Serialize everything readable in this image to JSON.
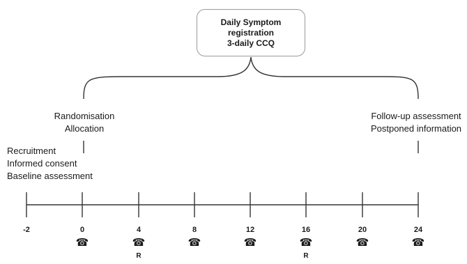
{
  "box": {
    "lines": [
      "Daily Symptom",
      "registration",
      "3-daily CCQ"
    ]
  },
  "labels": {
    "randomisation": [
      "Randomisation",
      "Allocation"
    ],
    "followup": [
      "Follow-up assessment",
      "Postponed information"
    ],
    "recruitment": [
      "Recruitment",
      "Informed consent",
      "Baseline assessment"
    ]
  },
  "timeline": {
    "ticks": [
      {
        "week": "-2",
        "phone": false,
        "mark": ""
      },
      {
        "week": "0",
        "phone": true,
        "mark": ""
      },
      {
        "week": "4",
        "phone": true,
        "mark": "R"
      },
      {
        "week": "8",
        "phone": true,
        "mark": ""
      },
      {
        "week": "12",
        "phone": true,
        "mark": ""
      },
      {
        "week": "16",
        "phone": true,
        "mark": "R"
      },
      {
        "week": "20",
        "phone": true,
        "mark": ""
      },
      {
        "week": "24",
        "phone": true,
        "mark": ""
      }
    ],
    "phone_icon": "telephone-icon",
    "line_color": "#333333",
    "bracket_color": "#333333"
  }
}
